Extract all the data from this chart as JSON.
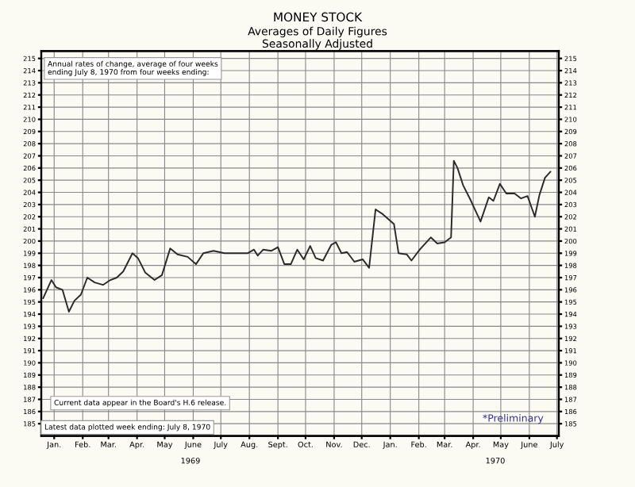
{
  "chart_data": {
    "type": "line",
    "title": "MONEY STOCK",
    "subtitle": "Averages of Daily Figures\nSeasonally Adjusted",
    "x": [
      "1969-01-03",
      "1969-01-12",
      "1969-01-17",
      "1969-01-24",
      "1969-01-31",
      "1969-02-06",
      "1969-02-13",
      "1969-02-20",
      "1969-02-28",
      "1969-03-09",
      "1969-03-17",
      "1969-03-24",
      "1969-03-31",
      "1969-04-10",
      "1969-04-16",
      "1969-04-24",
      "1969-05-04",
      "1969-05-12",
      "1969-05-21",
      "1969-05-29",
      "1969-06-09",
      "1969-06-18",
      "1969-06-26",
      "1969-07-07",
      "1969-07-19",
      "1969-07-30",
      "1969-08-13",
      "1969-08-20",
      "1969-08-24",
      "1969-08-30",
      "1969-09-08",
      "1969-09-15",
      "1969-09-22",
      "1969-09-29",
      "1969-10-06",
      "1969-10-13",
      "1969-10-20",
      "1969-10-26",
      "1969-11-03",
      "1969-11-12",
      "1969-11-17",
      "1969-11-23",
      "1969-11-29",
      "1969-12-07",
      "1969-12-16",
      "1969-12-23",
      "1969-12-30",
      "1970-01-07",
      "1970-01-19",
      "1970-01-24",
      "1970-02-02",
      "1970-02-07",
      "1970-02-16",
      "1970-02-28",
      "1970-03-07",
      "1970-03-15",
      "1970-03-22",
      "1970-03-25",
      "1970-03-29",
      "1970-04-04",
      "1970-04-12",
      "1970-04-23",
      "1970-05-02",
      "1970-05-07",
      "1970-05-14",
      "1970-05-21",
      "1970-05-30",
      "1970-06-06",
      "1970-06-13",
      "1970-06-21",
      "1970-06-26",
      "1970-07-02",
      "1970-07-08"
    ],
    "values": [
      195.3,
      196.8,
      196.2,
      196.0,
      194.2,
      195.1,
      195.6,
      197.0,
      196.6,
      196.4,
      196.8,
      197.0,
      197.5,
      199.0,
      198.6,
      197.4,
      196.8,
      197.2,
      199.4,
      198.9,
      198.7,
      198.1,
      199.0,
      199.2,
      199.0,
      199.0,
      199.0,
      199.3,
      198.8,
      199.3,
      199.2,
      199.5,
      198.1,
      198.1,
      199.3,
      198.5,
      199.6,
      198.6,
      198.4,
      199.7,
      199.9,
      199.0,
      199.1,
      198.3,
      198.5,
      197.8,
      202.6,
      202.2,
      201.4,
      199.0,
      198.9,
      198.4,
      199.3,
      200.3,
      199.8,
      199.9,
      200.3,
      206.6,
      206.0,
      204.6,
      203.4,
      201.6,
      203.6,
      203.3,
      204.7,
      203.9,
      203.9,
      203.5,
      203.7,
      202.0,
      203.8,
      205.2,
      205.7
    ],
    "color": "#2a2a2a",
    "line_style": "solid",
    "marker": "none",
    "grid": true,
    "xlim": [
      "1969-01-01",
      "1970-07-17"
    ],
    "xticks": [
      {
        "value": "1969-01-15",
        "label": "Jan."
      },
      {
        "value": "1969-02-15",
        "label": "Feb."
      },
      {
        "value": "1969-03-15",
        "label": "Mar."
      },
      {
        "value": "1969-04-15",
        "label": "Apr."
      },
      {
        "value": "1969-05-15",
        "label": "May"
      },
      {
        "value": "1969-06-15",
        "label": "June"
      },
      {
        "value": "1969-07-15",
        "label": "July"
      },
      {
        "value": "1969-08-15",
        "label": "Aug."
      },
      {
        "value": "1969-09-15",
        "label": "Sept."
      },
      {
        "value": "1969-10-15",
        "label": "Oct."
      },
      {
        "value": "1969-11-15",
        "label": "Nov."
      },
      {
        "value": "1969-12-15",
        "label": "Dec."
      },
      {
        "value": "1970-01-15",
        "label": "Jan."
      },
      {
        "value": "1970-02-15",
        "label": "Feb."
      },
      {
        "value": "1970-03-15",
        "label": "Mar."
      },
      {
        "value": "1970-04-15",
        "label": "Apr."
      },
      {
        "value": "1970-05-15",
        "label": "May"
      },
      {
        "value": "1970-06-15",
        "label": "June"
      },
      {
        "value": "1970-07-15",
        "label": "July"
      }
    ],
    "ylim": [
      184,
      215.6
    ],
    "yticks": [
      185,
      186,
      187,
      188,
      189,
      190,
      191,
      192,
      193,
      194,
      195,
      196,
      197,
      198,
      199,
      200,
      201,
      202,
      203,
      204,
      205,
      206,
      207,
      208,
      209,
      210,
      211,
      212,
      213,
      214,
      215
    ],
    "y2lim": [
      184,
      215.6
    ],
    "y2ticks": [
      185,
      186,
      187,
      188,
      189,
      190,
      191,
      192,
      193,
      194,
      195,
      196,
      197,
      198,
      199,
      200,
      201,
      202,
      203,
      204,
      205,
      206,
      207,
      208,
      209,
      210,
      211,
      212,
      213,
      214,
      215
    ],
    "annotations": [
      "1969",
      "1970",
      "Annual rates of change, average of four weeks\nending July 8, 1970 from four weeks ending:",
      "Current data appear in the Board's H.6 release.",
      "Latest data plotted week ending: July 8, 1970",
      "*Preliminary"
    ]
  }
}
